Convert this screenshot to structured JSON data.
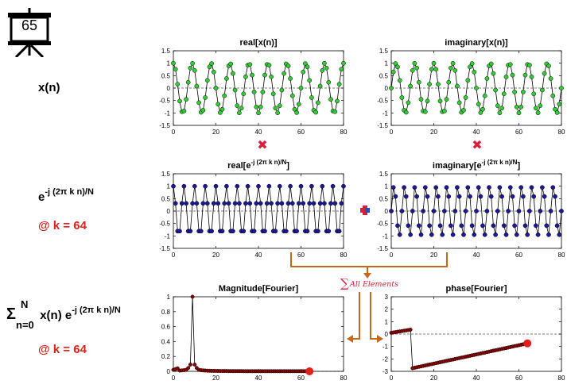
{
  "slide": {
    "number": "65"
  },
  "labels": {
    "xn": "x(n)",
    "exp_base": "e",
    "exp_sup": "-j (2π k n)/N",
    "at_k": "@ k = 64",
    "sum_symbol": "Σ",
    "sum_upper": "N",
    "sum_lower": "n=0",
    "sum_term": "x(n) e",
    "sum_sup": "-j (2π k n)/N",
    "at_k2": "@ k = 64",
    "sum_all": "All Elements",
    "times_symbol": "✖",
    "plus_symbol": "✚"
  },
  "colors": {
    "green": "#33cc33",
    "navy": "#1a1a99",
    "darkred": "#8b0000",
    "red": "#e0201a",
    "orange": "#c8661a",
    "plus_red": "#d8203a",
    "plus_blue": "#1f4fbf"
  },
  "chart_data": [
    {
      "id": "real-xn",
      "type": "line",
      "title": "real[x(n)]",
      "title_sup": "",
      "title_end": "",
      "xlim": [
        0,
        80
      ],
      "ylim": [
        -1.5,
        1.5
      ],
      "xticks": [
        "0",
        "20",
        "40",
        "60",
        "80"
      ],
      "yticks": [
        "1.5",
        "1",
        "0.5",
        "0",
        "-0.5",
        "-1",
        "-1.5"
      ],
      "series": [
        {
          "kind": "cos",
          "N": 80,
          "freq": 9,
          "amp": 1,
          "phase": 0
        }
      ]
    },
    {
      "id": "imag-xn",
      "type": "line",
      "title": "imaginary[x(n)]",
      "title_sup": "",
      "title_end": "",
      "xlim": [
        0,
        80
      ],
      "ylim": [
        -1.5,
        1.5
      ],
      "xticks": [
        "0",
        "20",
        "40",
        "60",
        "80"
      ],
      "yticks": [
        "1.5",
        "1",
        "0.5",
        "0",
        "-0.5",
        "-1",
        "-1.5"
      ],
      "series": [
        {
          "kind": "sin",
          "N": 80,
          "freq": 9,
          "amp": 1,
          "phase": 0
        }
      ]
    },
    {
      "id": "real-exp",
      "type": "line",
      "title": "real[e",
      "title_sup": "-j (2π k n)/N",
      "title_end": "]",
      "xlim": [
        0,
        80
      ],
      "ylim": [
        -1.5,
        1.5
      ],
      "xticks": [
        "0",
        "20",
        "40",
        "60",
        "80"
      ],
      "yticks": [
        "1.5",
        "1",
        "0.5",
        "0",
        "-0.5",
        "-1",
        "-1.5"
      ],
      "series": [
        {
          "kind": "cos",
          "N": 80,
          "freq": 64,
          "amp": 1,
          "phase": 0
        }
      ]
    },
    {
      "id": "imag-exp",
      "type": "line",
      "title": "imaginary[e",
      "title_sup": "-j (2π k n)/N",
      "title_end": "]",
      "xlim": [
        0,
        80
      ],
      "ylim": [
        -1.5,
        1.5
      ],
      "xticks": [
        "0",
        "20",
        "40",
        "60",
        "80"
      ],
      "yticks": [
        "1.5",
        "1",
        "0.5",
        "0",
        "-0.5",
        "-1",
        "-1.5"
      ],
      "series": [
        {
          "kind": "negsin",
          "N": 80,
          "freq": 64,
          "amp": 1,
          "phase": 0
        }
      ]
    },
    {
      "id": "magnitude",
      "type": "line",
      "title": "Magnitude[Fourier]",
      "title_sup": "",
      "title_end": "",
      "xlim": [
        0,
        80
      ],
      "ylim": [
        0,
        1
      ],
      "xticks": [
        "0",
        "20",
        "40",
        "60",
        "80"
      ],
      "yticks": [
        "1",
        "0.8",
        "0.6",
        "0.4",
        "0.2",
        "0"
      ],
      "series": [
        {
          "kind": "mag",
          "N": 65,
          "peak_at": 9,
          "peak": 1
        }
      ],
      "highlight": {
        "x": 64,
        "y": 0
      }
    },
    {
      "id": "phase",
      "type": "line",
      "title": "phase[Fourier]",
      "title_sup": "",
      "title_end": "",
      "xlim": [
        0,
        80
      ],
      "ylim": [
        -3,
        3
      ],
      "xticks": [
        "0",
        "20",
        "40",
        "60",
        "80"
      ],
      "yticks": [
        "3",
        "2",
        "1",
        "0",
        "-1",
        "-2",
        "-3"
      ],
      "series": [
        {
          "kind": "phase",
          "N": 65,
          "jump_at": 9,
          "start": 0.1,
          "pre_end": 0.35,
          "post_start": -2.75,
          "end": -0.75
        }
      ],
      "highlight": {
        "x": 64,
        "y": -0.75
      }
    }
  ]
}
